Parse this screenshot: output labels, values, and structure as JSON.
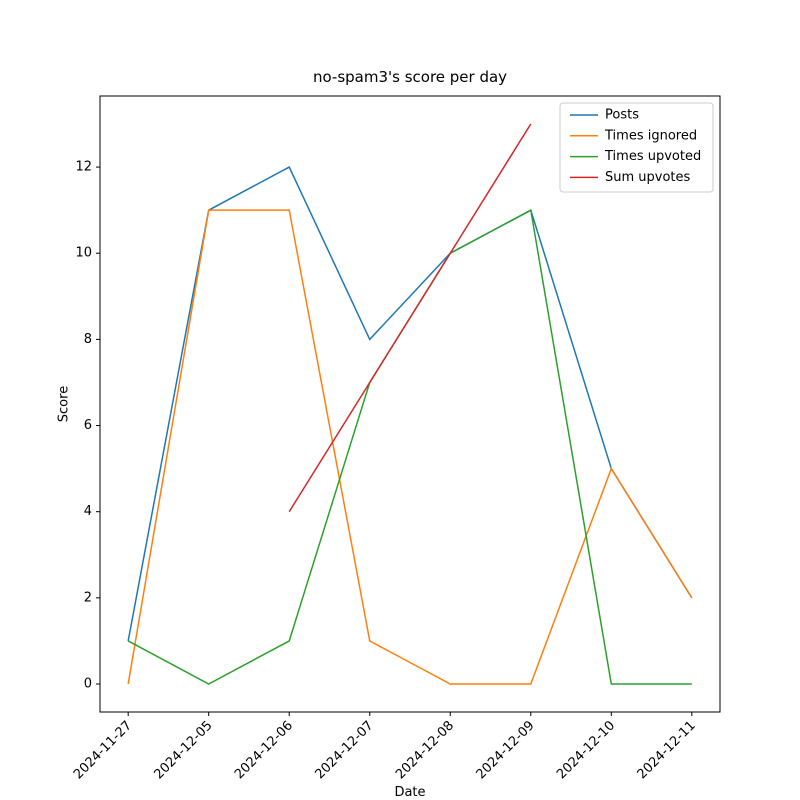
{
  "chart_data": {
    "type": "line",
    "title": "no-spam3's score per day",
    "xlabel": "Date",
    "ylabel": "Score",
    "categories": [
      "2024-11-27",
      "2024-12-05",
      "2024-12-06",
      "2024-12-07",
      "2024-12-08",
      "2024-12-09",
      "2024-12-10",
      "2024-12-11"
    ],
    "series": [
      {
        "name": "Posts",
        "color": "#1f77b4",
        "values": [
          1,
          11,
          12,
          8,
          10,
          11,
          5,
          2
        ]
      },
      {
        "name": "Times ignored",
        "color": "#ff7f0e",
        "values": [
          0,
          11,
          11,
          1,
          0,
          0,
          5,
          2
        ]
      },
      {
        "name": "Times upvoted",
        "color": "#2ca02c",
        "values": [
          1,
          0,
          1,
          7,
          10,
          11,
          0,
          0
        ]
      },
      {
        "name": "Sum upvotes",
        "color": "#d62728",
        "values": [
          null,
          null,
          4,
          7,
          10,
          13,
          null,
          null
        ]
      }
    ],
    "ylim": [
      -0.65,
      13.65
    ],
    "yticks": [
      0,
      2,
      4,
      6,
      8,
      10,
      12
    ],
    "grid": false,
    "legend": "upper right"
  }
}
